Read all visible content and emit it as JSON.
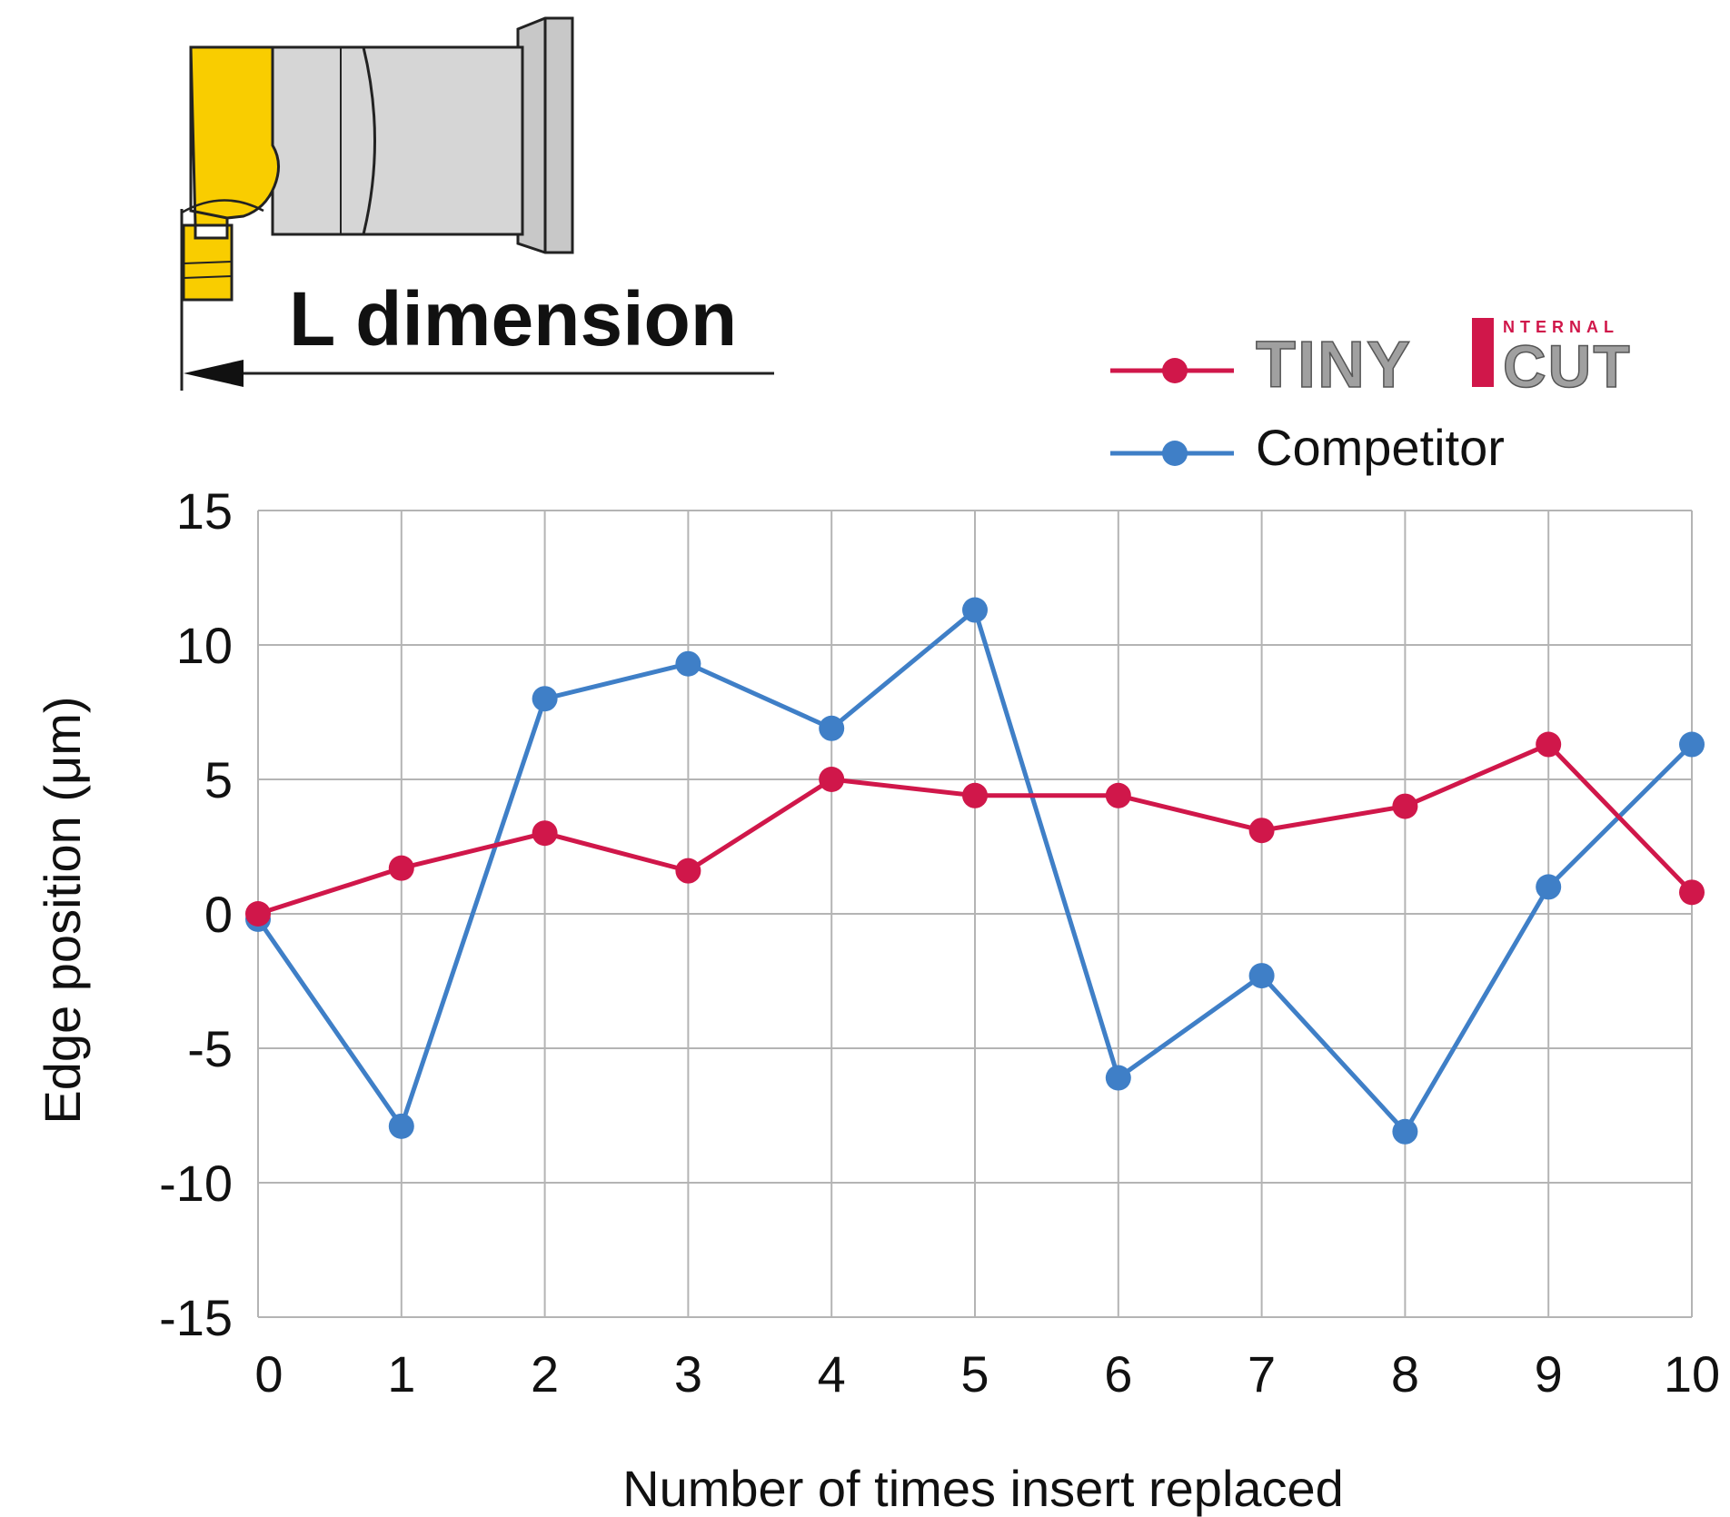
{
  "diagram": {
    "label": "L dimension"
  },
  "legend": {
    "placement": "top-right",
    "logo": {
      "prefix": "TINY",
      "suffix": "CUT",
      "superscript": "NTERNAL"
    }
  },
  "colors": {
    "tinycut": "#d0174a",
    "competitor": "#3f7fc7",
    "grid": "#b4b4b4",
    "insert_yellow": "#f9cd00",
    "holder_gray": "#d6d6d6",
    "logo_gray": "#a0a0a0",
    "logo_red": "#d0174a"
  },
  "chart_data": {
    "type": "line",
    "title": "",
    "xlabel": "Number of times insert replaced",
    "ylabel": "Edge position (μm)",
    "x": [
      0,
      1,
      2,
      3,
      4,
      5,
      6,
      7,
      8,
      9,
      10
    ],
    "xticks": [
      "0",
      "1",
      "2",
      "3",
      "4",
      "5",
      "6",
      "7",
      "8",
      "9",
      "10"
    ],
    "yticks": [
      "15",
      "10",
      "5",
      "0",
      "-5",
      "-10",
      "-15"
    ],
    "xlim": [
      0,
      10
    ],
    "ylim": [
      -15,
      15
    ],
    "grid": true,
    "series": [
      {
        "name": "TINY CUT INTERNAL",
        "color_key": "tinycut",
        "values": [
          0.0,
          1.7,
          3.0,
          1.6,
          5.0,
          4.4,
          4.4,
          3.1,
          4.0,
          6.3,
          0.8
        ]
      },
      {
        "name": "Competitor",
        "color_key": "competitor",
        "values": [
          -0.2,
          -7.9,
          8.0,
          9.3,
          6.9,
          11.3,
          -6.1,
          -2.3,
          -8.1,
          1.0,
          6.3
        ]
      }
    ]
  }
}
